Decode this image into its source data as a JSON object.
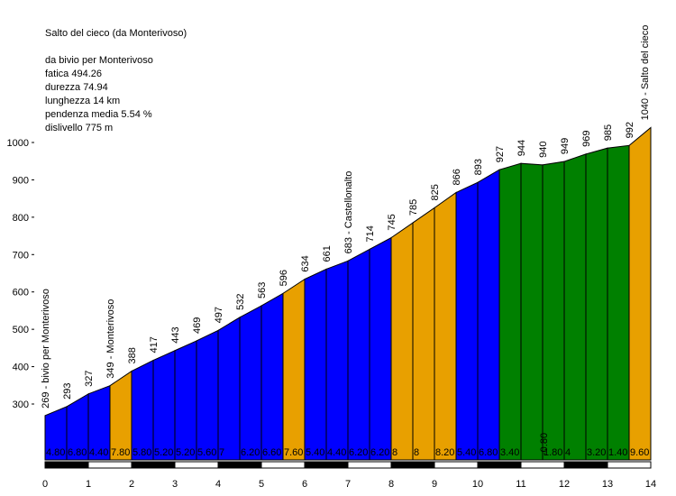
{
  "chart_data": {
    "type": "area",
    "title": "Salto del cieco (da Monterivoso)",
    "stats": [
      "da bivio per Monterivoso",
      "fatica 494.26",
      "durezza 74.94",
      "lunghezza 14 km",
      "pendenza media 5.54 %",
      "dislivello 775 m"
    ],
    "xlim": [
      0,
      14
    ],
    "ylim": [
      180,
      1060
    ],
    "y_ticks": [
      300,
      400,
      500,
      600,
      700,
      800,
      900,
      1000
    ],
    "x_ticks": [
      0,
      1,
      2,
      3,
      4,
      5,
      6,
      7,
      8,
      9,
      10,
      11,
      12,
      13,
      14
    ],
    "colors": {
      "blue": "#0000ff",
      "orange": "#e8a000",
      "green": "#008000"
    },
    "points": [
      {
        "x": 0,
        "y": 269,
        "label": "269 - bivio per Monterivoso"
      },
      {
        "x": 0.5,
        "y": 293,
        "label": "293"
      },
      {
        "x": 1,
        "y": 327,
        "label": "327"
      },
      {
        "x": 1.5,
        "y": 349,
        "label": "349 - Monterivoso"
      },
      {
        "x": 2,
        "y": 388,
        "label": "388"
      },
      {
        "x": 2.5,
        "y": 417,
        "label": "417"
      },
      {
        "x": 3,
        "y": 443,
        "label": "443"
      },
      {
        "x": 3.5,
        "y": 469,
        "label": "469"
      },
      {
        "x": 4,
        "y": 497,
        "label": "497"
      },
      {
        "x": 4.5,
        "y": 532,
        "label": "532"
      },
      {
        "x": 5,
        "y": 563,
        "label": "563"
      },
      {
        "x": 5.5,
        "y": 596,
        "label": "596"
      },
      {
        "x": 6,
        "y": 634,
        "label": "634"
      },
      {
        "x": 6.5,
        "y": 661,
        "label": "661"
      },
      {
        "x": 7,
        "y": 683,
        "label": "683 - Castellonalto"
      },
      {
        "x": 7.5,
        "y": 714,
        "label": "714"
      },
      {
        "x": 8,
        "y": 745,
        "label": "745"
      },
      {
        "x": 8.5,
        "y": 785,
        "label": "785"
      },
      {
        "x": 9,
        "y": 825,
        "label": "825"
      },
      {
        "x": 9.5,
        "y": 866,
        "label": "866"
      },
      {
        "x": 10,
        "y": 893,
        "label": "893"
      },
      {
        "x": 10.5,
        "y": 927,
        "label": "927"
      },
      {
        "x": 11,
        "y": 944,
        "label": "944"
      },
      {
        "x": 11.5,
        "y": 940,
        "label": "940"
      },
      {
        "x": 12,
        "y": 949,
        "label": "949"
      },
      {
        "x": 12.5,
        "y": 969,
        "label": "969"
      },
      {
        "x": 13,
        "y": 985,
        "label": "985"
      },
      {
        "x": 13.5,
        "y": 992,
        "label": "992"
      },
      {
        "x": 14,
        "y": 1040,
        "label": "1040 - Salto del cieco"
      }
    ],
    "segments": [
      {
        "grade": "4.80",
        "color": "blue"
      },
      {
        "grade": "6.80",
        "color": "blue"
      },
      {
        "grade": "4.40",
        "color": "blue"
      },
      {
        "grade": "7.80",
        "color": "orange"
      },
      {
        "grade": "5.80",
        "color": "blue"
      },
      {
        "grade": "5.20",
        "color": "blue"
      },
      {
        "grade": "5.20",
        "color": "blue"
      },
      {
        "grade": "5.60",
        "color": "blue"
      },
      {
        "grade": "7",
        "color": "blue"
      },
      {
        "grade": "6.20",
        "color": "blue"
      },
      {
        "grade": "6.60",
        "color": "blue"
      },
      {
        "grade": "7.60",
        "color": "orange"
      },
      {
        "grade": "5.40",
        "color": "blue"
      },
      {
        "grade": "4.40",
        "color": "blue"
      },
      {
        "grade": "6.20",
        "color": "blue"
      },
      {
        "grade": "6.20",
        "color": "blue"
      },
      {
        "grade": "8",
        "color": "orange"
      },
      {
        "grade": "8",
        "color": "orange"
      },
      {
        "grade": "8.20",
        "color": "orange"
      },
      {
        "grade": "5.40",
        "color": "blue"
      },
      {
        "grade": "6.80",
        "color": "blue"
      },
      {
        "grade": "3.40",
        "color": "green"
      },
      {
        "grade": "-0.80",
        "color": "green"
      },
      {
        "grade": "1.80",
        "color": "green"
      },
      {
        "grade": "4",
        "color": "green"
      },
      {
        "grade": "3.20",
        "color": "green"
      },
      {
        "grade": "1.40",
        "color": "green"
      },
      {
        "grade": "9.60",
        "color": "orange"
      }
    ]
  }
}
